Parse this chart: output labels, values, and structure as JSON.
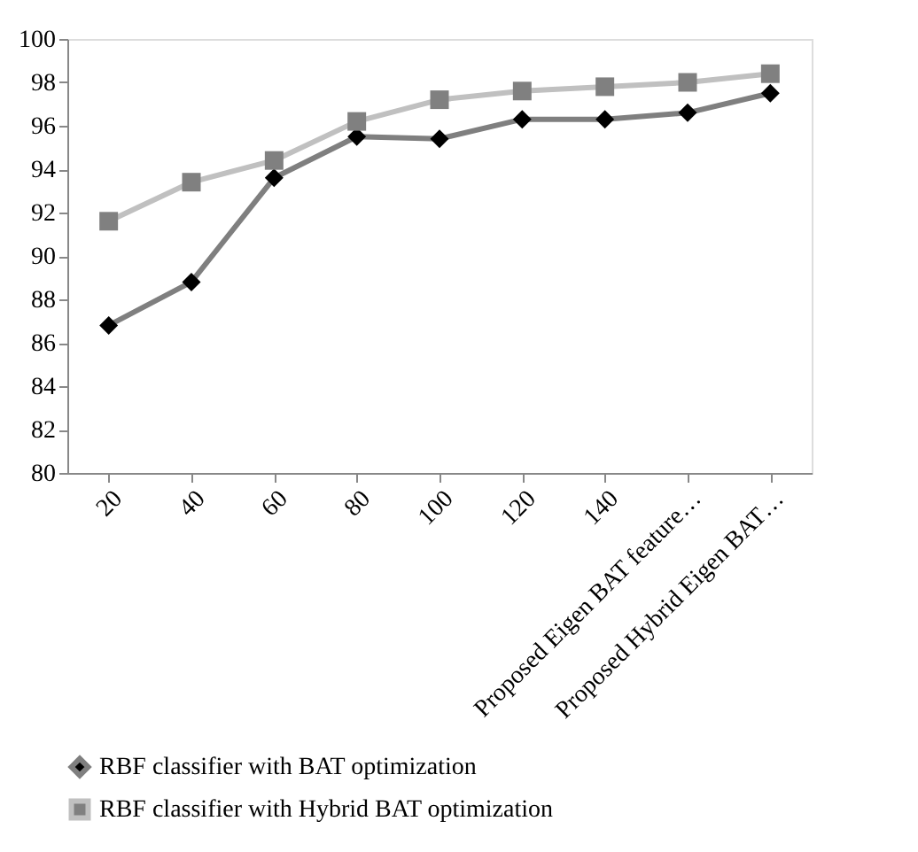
{
  "chart_data": {
    "type": "line",
    "categories": [
      "20",
      "40",
      "60",
      "80",
      "100",
      "120",
      "140",
      "Proposed Eigen BAT feature…",
      "Proposed Hybrid Eigen BAT…"
    ],
    "series": [
      {
        "name": "RBF classifier with BAT optimization",
        "color": "#7f7f7f",
        "marker": "diamond",
        "values": [
          86.8,
          88.8,
          93.6,
          95.5,
          95.4,
          96.3,
          96.3,
          96.6,
          97.5
        ]
      },
      {
        "name": "RBF classifier with Hybrid  BAT optimization",
        "color": "#c0c0c0",
        "marker": "square",
        "values": [
          91.6,
          93.4,
          94.4,
          96.2,
          97.2,
          97.6,
          97.8,
          98.0,
          98.4
        ]
      }
    ],
    "ylim": [
      80,
      100
    ],
    "yticks": [
      80,
      82,
      84,
      86,
      88,
      90,
      92,
      94,
      96,
      98,
      100
    ],
    "grid": false,
    "legend": "bottom",
    "line_style": "solid"
  }
}
